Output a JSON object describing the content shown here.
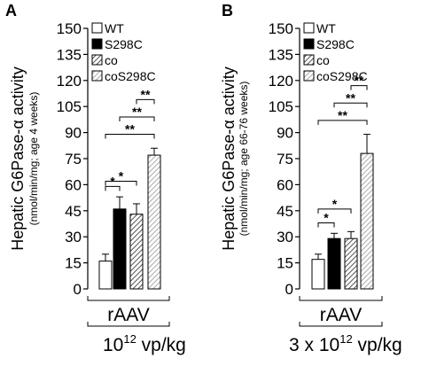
{
  "chart_data": [
    {
      "panel": "A",
      "type": "bar",
      "ylabel": "Hepatic G6Pase-α activity",
      "ylabel_sub": "(nmol/min/mg; age 4 weeks)",
      "ylim": [
        0,
        150
      ],
      "yticks": [
        "0",
        "15",
        "30",
        "45",
        "60",
        "75",
        "90",
        "105",
        "120",
        "135",
        "150"
      ],
      "categories": [
        "WT",
        "S298C",
        "co",
        "coS298C"
      ],
      "values": [
        16,
        46,
        43,
        77
      ],
      "errors": [
        4,
        7,
        6,
        4
      ],
      "group_label": "rAAV",
      "dose_base": "10",
      "dose_exp": "12",
      "dose_unit": " vp/kg",
      "significance": [
        {
          "pair": [
            "WT",
            "S298C"
          ],
          "label": "*"
        },
        {
          "pair": [
            "WT",
            "co"
          ],
          "label": "*"
        },
        {
          "pair": [
            "WT",
            "coS298C"
          ],
          "label": "**"
        },
        {
          "pair": [
            "S298C",
            "coS298C"
          ],
          "label": "**"
        },
        {
          "pair": [
            "co",
            "coS298C"
          ],
          "label": "**"
        }
      ]
    },
    {
      "panel": "B",
      "type": "bar",
      "ylabel": "Hepatic G6Pase-α activity",
      "ylabel_sub": "(nmol/min/mg; age 66-76 weeks)",
      "ylim": [
        0,
        150
      ],
      "yticks": [
        "0",
        "15",
        "30",
        "45",
        "60",
        "75",
        "90",
        "105",
        "120",
        "135",
        "150"
      ],
      "categories": [
        "WT",
        "S298C",
        "co",
        "coS298C"
      ],
      "values": [
        17,
        29,
        29,
        78
      ],
      "errors": [
        3,
        3,
        4,
        11
      ],
      "group_label": "rAAV",
      "dose_base": "3 x 10",
      "dose_exp": "12",
      "dose_unit": " vp/kg",
      "significance": [
        {
          "pair": [
            "WT",
            "S298C"
          ],
          "label": "*"
        },
        {
          "pair": [
            "WT",
            "co"
          ],
          "label": "*"
        },
        {
          "pair": [
            "WT",
            "coS298C"
          ],
          "label": "**"
        },
        {
          "pair": [
            "S298C",
            "coS298C"
          ],
          "label": "**"
        },
        {
          "pair": [
            "co",
            "coS298C"
          ],
          "label": "**"
        }
      ]
    }
  ]
}
